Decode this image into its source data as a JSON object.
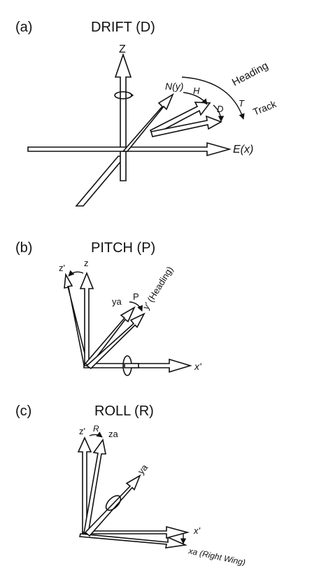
{
  "panels": {
    "a": {
      "letter": "(a)",
      "title": "DRIFT (D)",
      "labels": {
        "z": "Z",
        "n": "N(y)",
        "h": "H",
        "d": "D",
        "t": "T",
        "heading": "Heading",
        "track": "Track",
        "e": "E(x)"
      }
    },
    "b": {
      "letter": "(b)",
      "title": "PITCH (P)",
      "labels": {
        "zp": "z'",
        "z": "z",
        "ya": "ya",
        "p": "P",
        "yp": "y' (Heading)",
        "xp": "x'"
      }
    },
    "c": {
      "letter": "(c)",
      "title": "ROLL (R)",
      "labels": {
        "zp": "z'",
        "r": "R",
        "za": "za",
        "ya": "ya",
        "xp": "x'",
        "xa": "xa (Right Wing)"
      }
    }
  },
  "colors": {
    "ink": "#111111",
    "paper": "#ffffff"
  }
}
